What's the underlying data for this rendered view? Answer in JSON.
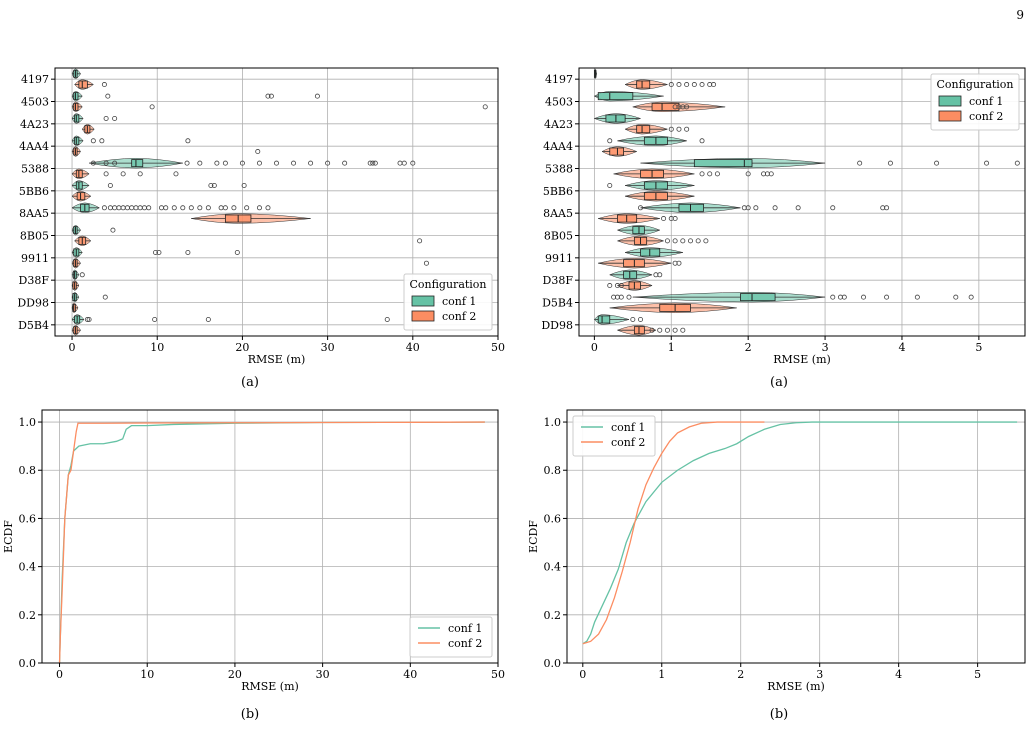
{
  "page": {
    "number": "9"
  },
  "colors": {
    "conf1": "#66c2a5",
    "conf2": "#fc8d62",
    "grid": "#b0b0b0",
    "outlier": "#444444"
  },
  "chart_data": [
    {
      "id": "tl",
      "type": "violin",
      "caption": "(a)",
      "xlabel": "RMSE (m)",
      "xlim": [
        -2,
        50
      ],
      "xticks": [
        0,
        10,
        20,
        30,
        40,
        50
      ],
      "grid": true,
      "legend": {
        "title": "Configuration",
        "placement": "lower-right",
        "entries": [
          "conf 1",
          "conf 2"
        ]
      },
      "categories": [
        "4197",
        "4503",
        "4A23",
        "4AA4",
        "5388",
        "5BB6",
        "8AA5",
        "8B05",
        "9911",
        "D38F",
        "DD98",
        "D5B4"
      ],
      "series": [
        {
          "name": "conf 1",
          "data": [
            {
              "q1": 0.2,
              "med": 0.4,
              "q3": 0.6,
              "lw": 0,
              "hw": 1.0,
              "out": []
            },
            {
              "q1": 0.2,
              "med": 0.4,
              "q3": 0.7,
              "lw": 0,
              "hw": 1.2,
              "out": [
                4.2,
                23,
                23.4,
                28.8
              ]
            },
            {
              "q1": 0.3,
              "med": 0.5,
              "q3": 0.8,
              "lw": 0,
              "hw": 1.3,
              "out": [
                4.0,
                5.0
              ]
            },
            {
              "q1": 0.3,
              "med": 0.5,
              "q3": 0.8,
              "lw": 0,
              "hw": 1.3,
              "out": [
                2.5,
                3.5,
                13.6
              ]
            },
            {
              "q1": 7.0,
              "med": 7.5,
              "q3": 8.3,
              "lw": 2.0,
              "hw": 13,
              "out": [
                2.5,
                4,
                5,
                13.5,
                15,
                17,
                18,
                20,
                22,
                24,
                26,
                28,
                30,
                32,
                35,
                35.3,
                35.6,
                38.5,
                39,
                40
              ]
            },
            {
              "q1": 0.5,
              "med": 0.8,
              "q3": 1.2,
              "lw": 0,
              "hw": 2.0,
              "out": [
                4.5,
                16.3,
                16.7,
                20.2
              ]
            },
            {
              "q1": 1.0,
              "med": 1.5,
              "q3": 2.0,
              "lw": 0,
              "hw": 3.2,
              "out": [
                3.8,
                4.5,
                5,
                5.5,
                6,
                6.5,
                7,
                7.5,
                8,
                8.5,
                9,
                10.5,
                11,
                12,
                13,
                14,
                15,
                16,
                17.5,
                18,
                19,
                20.5,
                22,
                23
              ]
            },
            {
              "q1": 0.2,
              "med": 0.4,
              "q3": 0.6,
              "lw": 0,
              "hw": 1.0,
              "out": [
                4.8
              ]
            },
            {
              "q1": 0.2,
              "med": 0.5,
              "q3": 0.8,
              "lw": 0,
              "hw": 1.2,
              "out": [
                9.8,
                10.2,
                13.6,
                19.4
              ]
            },
            {
              "q1": 0.2,
              "med": 0.3,
              "q3": 0.5,
              "lw": 0,
              "hw": 0.8,
              "out": [
                1.2
              ]
            },
            {
              "q1": 0.1,
              "med": 0.3,
              "q3": 0.5,
              "lw": 0,
              "hw": 0.8,
              "out": [
                3.9
              ]
            },
            {
              "q1": 0.3,
              "med": 0.6,
              "q3": 0.9,
              "lw": 0,
              "hw": 1.4,
              "out": [
                1.8,
                2.0,
                9.7,
                16.0,
                37.0
              ]
            }
          ]
        },
        {
          "name": "conf 2",
          "data": [
            {
              "q1": 0.8,
              "med": 1.2,
              "q3": 1.8,
              "lw": 0.3,
              "hw": 2.5,
              "out": [
                3.8
              ]
            },
            {
              "q1": 0.2,
              "med": 0.4,
              "q3": 0.7,
              "lw": 0,
              "hw": 1.2,
              "out": [
                9.4,
                48.5
              ]
            },
            {
              "q1": 1.5,
              "med": 1.8,
              "q3": 2.1,
              "lw": 1.2,
              "hw": 2.6,
              "out": []
            },
            {
              "q1": 0.2,
              "med": 0.4,
              "q3": 0.6,
              "lw": 0,
              "hw": 1.0,
              "out": [
                21.8
              ]
            },
            {
              "q1": 0.5,
              "med": 0.8,
              "q3": 1.2,
              "lw": 0,
              "hw": 2.0,
              "out": [
                4,
                6,
                8,
                12.2
              ]
            },
            {
              "q1": 0.6,
              "med": 1.0,
              "q3": 1.5,
              "lw": 0,
              "hw": 2.2,
              "out": []
            },
            {
              "q1": 18.0,
              "med": 19.5,
              "q3": 21.0,
              "lw": 14,
              "hw": 28,
              "out": []
            },
            {
              "q1": 0.8,
              "med": 1.2,
              "q3": 1.6,
              "lw": 0.3,
              "hw": 2.2,
              "out": [
                40.8
              ]
            },
            {
              "q1": 0.2,
              "med": 0.4,
              "q3": 0.6,
              "lw": 0,
              "hw": 1.0,
              "out": [
                41.6
              ]
            },
            {
              "q1": 0.1,
              "med": 0.3,
              "q3": 0.5,
              "lw": 0,
              "hw": 0.8,
              "out": []
            },
            {
              "q1": 0.1,
              "med": 0.2,
              "q3": 0.4,
              "lw": 0,
              "hw": 0.7,
              "out": []
            },
            {
              "q1": 0.2,
              "med": 0.4,
              "q3": 0.6,
              "lw": 0,
              "hw": 1.0,
              "out": []
            }
          ]
        }
      ]
    },
    {
      "id": "tr",
      "type": "violin",
      "caption": "(a)",
      "xlabel": "RMSE (m)",
      "xlim": [
        -0.2,
        5.6
      ],
      "xticks": [
        0,
        1,
        2,
        3,
        4,
        5
      ],
      "grid": true,
      "legend": {
        "title": "Configuration",
        "placement": "upper-right",
        "entries": [
          "conf 1",
          "conf 2"
        ]
      },
      "categories": [
        "4197",
        "4503",
        "4A23",
        "4AA4",
        "5388",
        "5BB6",
        "8AA5",
        "8B05",
        "9911",
        "D38F",
        "D5B4",
        "DD98"
      ],
      "series": [
        {
          "name": "conf 1",
          "data": [
            {
              "q1": 0,
              "med": 0.01,
              "q3": 0.02,
              "lw": 0,
              "hw": 0.03,
              "out": []
            },
            {
              "q1": 0.05,
              "med": 0.2,
              "q3": 0.5,
              "lw": 0,
              "hw": 0.9,
              "out": []
            },
            {
              "q1": 0.15,
              "med": 0.28,
              "q3": 0.4,
              "lw": 0,
              "hw": 0.6,
              "out": []
            },
            {
              "q1": 0.65,
              "med": 0.8,
              "q3": 0.95,
              "lw": 0.3,
              "hw": 1.2,
              "out": [
                0.2,
                1.4
              ]
            },
            {
              "q1": 1.3,
              "med": 1.95,
              "q3": 2.05,
              "lw": 0.6,
              "hw": 3.0,
              "out": [
                3.45,
                3.85,
                4.45,
                5.1,
                5.5
              ]
            },
            {
              "q1": 0.65,
              "med": 0.8,
              "q3": 0.95,
              "lw": 0.4,
              "hw": 1.3,
              "out": [
                0.2
              ]
            },
            {
              "q1": 1.1,
              "med": 1.25,
              "q3": 1.42,
              "lw": 0.6,
              "hw": 1.9,
              "out": [
                0.6,
                1.95,
                2.0,
                2.1,
                2.35,
                2.65,
                3.1,
                3.75,
                3.8
              ]
            },
            {
              "q1": 0.5,
              "med": 0.58,
              "q3": 0.65,
              "lw": 0.3,
              "hw": 0.85,
              "out": []
            },
            {
              "q1": 0.6,
              "med": 0.72,
              "q3": 0.85,
              "lw": 0.4,
              "hw": 1.15,
              "out": []
            },
            {
              "q1": 0.38,
              "med": 0.46,
              "q3": 0.55,
              "lw": 0.2,
              "hw": 0.75,
              "out": [
                0.8,
                0.85
              ]
            },
            {
              "q1": 1.9,
              "med": 2.05,
              "q3": 2.35,
              "lw": 0.5,
              "hw": 3.0,
              "out": [
                0.25,
                0.3,
                0.35,
                0.45,
                3.1,
                3.2,
                3.25,
                3.5,
                3.8,
                4.2,
                4.7,
                4.9
              ]
            },
            {
              "q1": 0.05,
              "med": 0.1,
              "q3": 0.2,
              "lw": 0,
              "hw": 0.45,
              "out": [
                0.5,
                0.6
              ]
            }
          ]
        },
        {
          "name": "conf 2",
          "data": [
            {
              "q1": 0.55,
              "med": 0.62,
              "q3": 0.72,
              "lw": 0.4,
              "hw": 0.95,
              "out": [
                1.0,
                1.1,
                1.2,
                1.3,
                1.4,
                1.5,
                1.55
              ]
            },
            {
              "q1": 0.75,
              "med": 0.88,
              "q3": 1.1,
              "lw": 0.5,
              "hw": 1.7,
              "out": [
                1.05,
                1.1,
                1.15,
                1.2
              ]
            },
            {
              "q1": 0.55,
              "med": 0.62,
              "q3": 0.72,
              "lw": 0.4,
              "hw": 0.95,
              "out": [
                1.0,
                1.1,
                1.2
              ]
            },
            {
              "q1": 0.2,
              "med": 0.3,
              "q3": 0.38,
              "lw": 0.1,
              "hw": 0.55,
              "out": []
            },
            {
              "q1": 0.6,
              "med": 0.75,
              "q3": 0.9,
              "lw": 0.25,
              "hw": 1.3,
              "out": [
                1.4,
                1.5,
                1.6,
                2.0,
                2.2,
                2.25,
                2.3
              ]
            },
            {
              "q1": 0.65,
              "med": 0.8,
              "q3": 0.95,
              "lw": 0.4,
              "hw": 1.3,
              "out": []
            },
            {
              "q1": 0.3,
              "med": 0.42,
              "q3": 0.55,
              "lw": 0.05,
              "hw": 0.85,
              "out": [
                0.9,
                1.0,
                1.05
              ]
            },
            {
              "q1": 0.52,
              "med": 0.6,
              "q3": 0.68,
              "lw": 0.3,
              "hw": 0.9,
              "out": [
                0.95,
                1.05,
                1.15,
                1.25,
                1.35,
                1.45
              ]
            },
            {
              "q1": 0.38,
              "med": 0.52,
              "q3": 0.65,
              "lw": 0.05,
              "hw": 1.0,
              "out": [
                1.05,
                1.1
              ]
            },
            {
              "q1": 0.45,
              "med": 0.52,
              "q3": 0.6,
              "lw": 0.3,
              "hw": 0.75,
              "out": [
                0.2,
                0.3,
                0.35
              ]
            },
            {
              "q1": 0.85,
              "med": 1.05,
              "q3": 1.25,
              "lw": 0.2,
              "hw": 1.85,
              "out": []
            },
            {
              "q1": 0.52,
              "med": 0.58,
              "q3": 0.65,
              "lw": 0.3,
              "hw": 0.8,
              "out": [
                0.75,
                0.85,
                0.95,
                1.05,
                1.15
              ]
            }
          ]
        }
      ]
    },
    {
      "id": "bl",
      "type": "line",
      "caption": "(b)",
      "xlabel": "RMSE (m)",
      "ylabel": "ECDF",
      "xlim": [
        -2,
        50
      ],
      "ylim": [
        0,
        1.05
      ],
      "xticks": [
        0,
        10,
        20,
        30,
        40,
        50
      ],
      "yticks": [
        0.0,
        0.2,
        0.4,
        0.6,
        0.8,
        1.0
      ],
      "grid": true,
      "legend": {
        "placement": "lower-right",
        "entries": [
          "conf 1",
          "conf 2"
        ]
      },
      "series": [
        {
          "name": "conf 1",
          "x": [
            0,
            0.1,
            0.3,
            0.6,
            1.0,
            1.3,
            1.6,
            2.2,
            3.5,
            5,
            6.5,
            7.2,
            7.6,
            8.2,
            10,
            13,
            20,
            30,
            40,
            48.5
          ],
          "y": [
            0.0,
            0.12,
            0.35,
            0.6,
            0.78,
            0.82,
            0.88,
            0.9,
            0.91,
            0.91,
            0.92,
            0.93,
            0.97,
            0.985,
            0.985,
            0.99,
            0.995,
            0.998,
            0.999,
            1.0
          ]
        },
        {
          "name": "conf 2",
          "x": [
            0,
            0.1,
            0.3,
            0.6,
            1.0,
            1.3,
            1.6,
            1.9,
            2.1,
            5,
            10,
            20,
            30,
            40,
            48.5
          ],
          "y": [
            0.0,
            0.12,
            0.3,
            0.6,
            0.78,
            0.8,
            0.88,
            0.96,
            0.995,
            0.995,
            0.996,
            0.997,
            0.998,
            0.999,
            1.0
          ]
        }
      ]
    },
    {
      "id": "br",
      "type": "line",
      "caption": "(b)",
      "xlabel": "RMSE (m)",
      "ylabel": "ECDF",
      "xlim": [
        -0.2,
        5.6
      ],
      "ylim": [
        0,
        1.05
      ],
      "xticks": [
        0,
        1,
        2,
        3,
        4,
        5
      ],
      "yticks": [
        0.0,
        0.2,
        0.4,
        0.6,
        0.8,
        1.0
      ],
      "grid": true,
      "legend": {
        "placement": "upper-left",
        "entries": [
          "conf 1",
          "conf 2"
        ]
      },
      "series": [
        {
          "name": "conf 1",
          "x": [
            0,
            0.05,
            0.1,
            0.15,
            0.25,
            0.35,
            0.45,
            0.55,
            0.65,
            0.8,
            1.0,
            1.2,
            1.4,
            1.6,
            1.8,
            1.95,
            2.1,
            2.3,
            2.5,
            2.7,
            2.9,
            3.5,
            4.5,
            5.5
          ],
          "y": [
            0.08,
            0.09,
            0.12,
            0.17,
            0.24,
            0.31,
            0.39,
            0.5,
            0.58,
            0.67,
            0.75,
            0.8,
            0.84,
            0.87,
            0.89,
            0.91,
            0.94,
            0.97,
            0.99,
            0.997,
            1.0,
            1.0,
            1.0,
            1.0
          ]
        },
        {
          "name": "conf 2",
          "x": [
            0,
            0.1,
            0.2,
            0.3,
            0.4,
            0.5,
            0.6,
            0.7,
            0.8,
            0.9,
            1.0,
            1.1,
            1.2,
            1.35,
            1.5,
            1.7,
            2.3
          ],
          "y": [
            0.08,
            0.09,
            0.12,
            0.18,
            0.27,
            0.38,
            0.5,
            0.64,
            0.74,
            0.81,
            0.87,
            0.92,
            0.955,
            0.98,
            0.995,
            1.0,
            1.0
          ]
        }
      ]
    }
  ]
}
